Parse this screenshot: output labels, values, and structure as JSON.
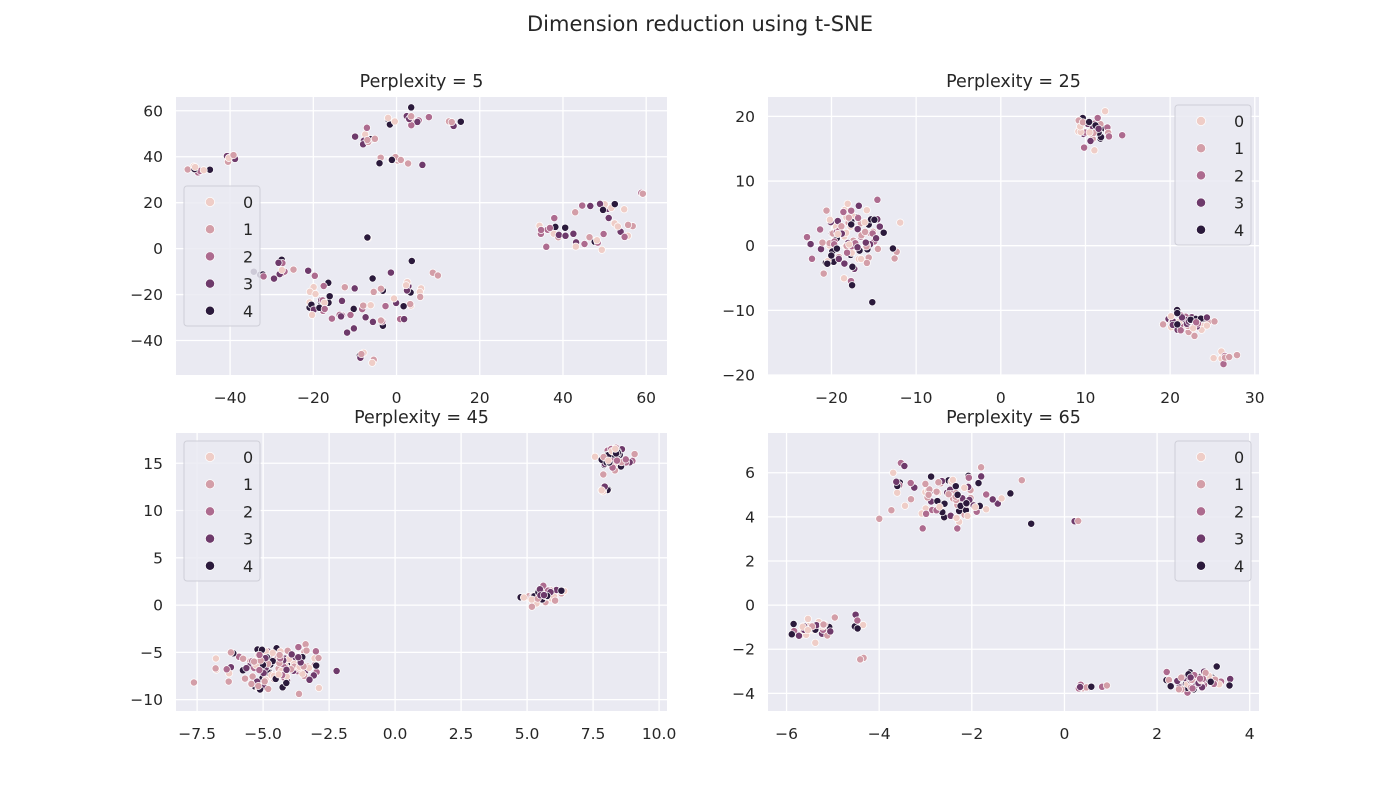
{
  "figure": {
    "title": "Dimension reduction using t-SNE"
  },
  "chart_data": [
    {
      "type": "scatter",
      "title": "Perplexity = 5",
      "xlim": [
        -53,
        65
      ],
      "ylim": [
        -55,
        66
      ],
      "xticks": [
        -40,
        -20,
        0,
        20,
        40,
        60
      ],
      "yticks": [
        -40,
        -20,
        0,
        20,
        40,
        60
      ],
      "xtick_labels": [
        "−40",
        "−20",
        "0",
        "20",
        "40",
        "60"
      ],
      "ytick_labels": [
        "−40",
        "−20",
        "0",
        "20",
        "40",
        "60"
      ],
      "grid": true,
      "legend": {
        "position": "center-left",
        "labels": [
          "0",
          "1",
          "2",
          "3",
          "4"
        ]
      },
      "clusters": [
        {
          "cx": -47,
          "cy": 34,
          "sx": 3,
          "sy": 1.5,
          "n": 8
        },
        {
          "cx": -40,
          "cy": 39,
          "sx": 1.5,
          "sy": 1.2,
          "n": 5
        },
        {
          "cx": -8,
          "cy": 48,
          "sx": 2.5,
          "sy": 3,
          "n": 10
        },
        {
          "cx": 2,
          "cy": 56,
          "sx": 6,
          "sy": 2.5,
          "n": 14
        },
        {
          "cx": 12,
          "cy": 55,
          "sx": 2,
          "sy": 2,
          "n": 5
        },
        {
          "cx": 2,
          "cy": 39,
          "sx": 5,
          "sy": 2,
          "n": 10
        },
        {
          "cx": 38,
          "cy": 6,
          "sx": 3,
          "sy": 4,
          "n": 14
        },
        {
          "cx": 48,
          "cy": 18,
          "sx": 4,
          "sy": 2,
          "n": 12
        },
        {
          "cx": 45,
          "cy": 3,
          "sx": 4,
          "sy": 2.5,
          "n": 10
        },
        {
          "cx": 54,
          "cy": 10,
          "sx": 2,
          "sy": 5,
          "n": 8
        },
        {
          "cx": 59,
          "cy": 24,
          "sx": 0.5,
          "sy": 0.5,
          "n": 2
        },
        {
          "cx": -28,
          "cy": -10,
          "sx": 4,
          "sy": 4,
          "n": 14
        },
        {
          "cx": -18,
          "cy": -22,
          "sx": 3,
          "sy": 10,
          "n": 22
        },
        {
          "cx": -8,
          "cy": -25,
          "sx": 6,
          "sy": 10,
          "n": 24
        },
        {
          "cx": 3,
          "cy": -18,
          "sx": 4,
          "sy": 9,
          "n": 20
        },
        {
          "cx": -7,
          "cy": 4,
          "sx": 0.6,
          "sy": 0.6,
          "n": 2
        },
        {
          "cx": -8,
          "cy": -47,
          "sx": 2,
          "sy": 2,
          "n": 6
        }
      ]
    },
    {
      "type": "scatter",
      "title": "Perplexity = 25",
      "xlim": [
        -27.5,
        30.5
      ],
      "ylim": [
        -20,
        23
      ],
      "xticks": [
        -20,
        -10,
        0,
        10,
        20,
        30
      ],
      "yticks": [
        -20,
        -10,
        0,
        10,
        20
      ],
      "xtick_labels": [
        "−20",
        "−10",
        "0",
        "10",
        "20",
        "30"
      ],
      "ytick_labels": [
        "−20",
        "−10",
        "0",
        "10",
        "20"
      ],
      "grid": true,
      "legend": {
        "position": "top-right",
        "labels": [
          "0",
          "1",
          "2",
          "3",
          "4"
        ]
      },
      "clusters": [
        {
          "cx": 11,
          "cy": 18,
          "sx": 1.6,
          "sy": 1.7,
          "n": 38
        },
        {
          "cx": -18,
          "cy": 1,
          "sx": 3,
          "sy": 3.8,
          "n": 110
        },
        {
          "cx": 22,
          "cy": -12,
          "sx": 1.8,
          "sy": 1.3,
          "n": 55
        },
        {
          "cx": 26.5,
          "cy": -17,
          "sx": 0.8,
          "sy": 0.6,
          "n": 10
        }
      ]
    },
    {
      "type": "scatter",
      "title": "Perplexity = 45",
      "xlim": [
        -8.3,
        10.3
      ],
      "ylim": [
        -11.2,
        18.2
      ],
      "xticks": [
        -7.5,
        -5.0,
        -2.5,
        0.0,
        2.5,
        5.0,
        7.5,
        10.0
      ],
      "yticks": [
        -10,
        -5,
        0,
        5,
        10,
        15
      ],
      "xtick_labels": [
        "−7.5",
        "−5.0",
        "−2.5",
        "0.0",
        "2.5",
        "5.0",
        "7.5",
        "10.0"
      ],
      "ytick_labels": [
        "−10",
        "−5",
        "0",
        "5",
        "10",
        "15"
      ],
      "grid": true,
      "legend": {
        "position": "top-left",
        "labels": [
          "0",
          "1",
          "2",
          "3",
          "4"
        ]
      },
      "clusters": [
        {
          "cx": 8.3,
          "cy": 15.5,
          "sx": 0.5,
          "sy": 0.8,
          "n": 50
        },
        {
          "cx": 7.9,
          "cy": 12.3,
          "sx": 0.3,
          "sy": 0.3,
          "n": 6
        },
        {
          "cx": 5.6,
          "cy": 0.9,
          "sx": 0.6,
          "sy": 0.6,
          "n": 50
        },
        {
          "cx": -4.6,
          "cy": -6.5,
          "sx": 1.3,
          "sy": 1.6,
          "n": 130
        }
      ]
    },
    {
      "type": "scatter",
      "title": "Perplexity = 65",
      "xlim": [
        -6.4,
        4.2
      ],
      "ylim": [
        -4.8,
        7.8
      ],
      "xticks": [
        -6,
        -4,
        -2,
        0,
        2,
        4
      ],
      "yticks": [
        -4,
        -2,
        0,
        2,
        4,
        6
      ],
      "xtick_labels": [
        "−6",
        "−4",
        "−2",
        "0",
        "2",
        "4"
      ],
      "ytick_labels": [
        "−4",
        "−2",
        "0",
        "2",
        "4",
        "6"
      ],
      "grid": true,
      "legend": {
        "position": "top-right",
        "labels": [
          "0",
          "1",
          "2",
          "3",
          "4"
        ]
      },
      "clusters": [
        {
          "cx": -2.5,
          "cy": 4.9,
          "sx": 0.9,
          "sy": 0.8,
          "n": 95
        },
        {
          "cx": -5.4,
          "cy": -1.0,
          "sx": 0.4,
          "sy": 0.3,
          "n": 40
        },
        {
          "cx": -4.4,
          "cy": -0.8,
          "sx": 0.12,
          "sy": 0.4,
          "n": 5
        },
        {
          "cx": -4.4,
          "cy": -2.4,
          "sx": 0.1,
          "sy": 0.1,
          "n": 2
        },
        {
          "cx": 0.5,
          "cy": -3.7,
          "sx": 0.25,
          "sy": 0.08,
          "n": 10
        },
        {
          "cx": 2.8,
          "cy": -3.4,
          "sx": 0.5,
          "sy": 0.35,
          "n": 60
        },
        {
          "cx": 0.25,
          "cy": 3.8,
          "sx": 0.05,
          "sy": 0.05,
          "n": 2
        }
      ]
    }
  ],
  "hue_palette": [
    "#efcdc7",
    "#d39ea8",
    "#ad6b8f",
    "#6e3a6b",
    "#2b1a3c"
  ]
}
